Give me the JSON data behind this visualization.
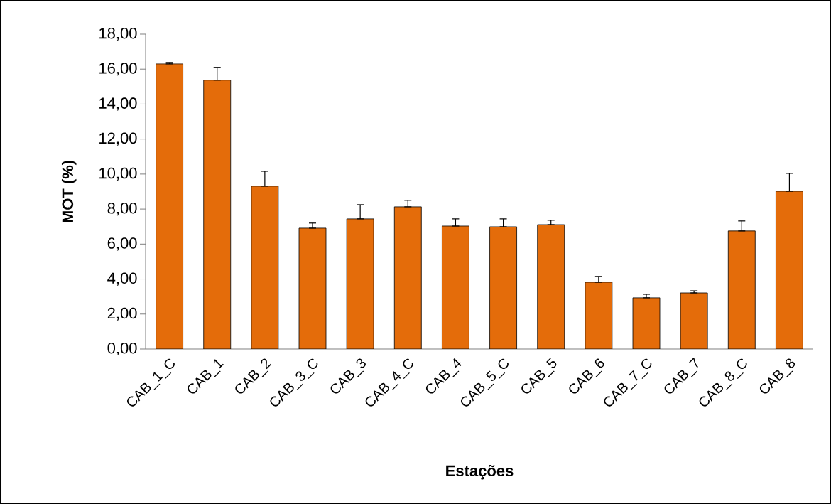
{
  "chart_data": {
    "type": "bar",
    "xlabel": "Estações",
    "ylabel": "MOT (%)",
    "categories": [
      "CAB_1_C",
      "CAB_1",
      "CAB_2",
      "CAB_3_C",
      "CAB_3",
      "CAB_4_C",
      "CAB_4",
      "CAB_5_C",
      "CAB_5",
      "CAB_6",
      "CAB_7_C",
      "CAB_7",
      "CAB_8_C",
      "CAB_8"
    ],
    "values": [
      16.3,
      15.37,
      9.31,
      6.91,
      7.44,
      8.13,
      7.03,
      6.99,
      7.11,
      3.82,
      2.93,
      3.21,
      6.75,
      9.02
    ],
    "errors": [
      [
        16.3,
        16.38
      ],
      [
        15.37,
        16.1
      ],
      [
        9.31,
        10.16
      ],
      [
        6.91,
        7.2
      ],
      [
        7.44,
        8.25
      ],
      [
        8.13,
        8.5
      ],
      [
        7.03,
        7.44
      ],
      [
        6.99,
        7.44
      ],
      [
        7.11,
        7.36
      ],
      [
        3.82,
        4.15
      ],
      [
        2.93,
        3.13
      ],
      [
        3.21,
        3.33
      ],
      [
        6.75,
        7.32
      ],
      [
        9.02,
        10.04
      ]
    ],
    "color": "#e46c0a",
    "ylim": [
      0,
      18
    ],
    "yticks": [
      {
        "value": 0,
        "label": "0,00"
      },
      {
        "value": 2,
        "label": "2,00"
      },
      {
        "value": 4,
        "label": "4,00"
      },
      {
        "value": 6,
        "label": "6,00"
      },
      {
        "value": 8,
        "label": "8,00"
      },
      {
        "value": 10,
        "label": "10,00"
      },
      {
        "value": 12,
        "label": "12,00"
      },
      {
        "value": 14,
        "label": "14,00"
      },
      {
        "value": 16,
        "label": "16,00"
      },
      {
        "value": 18,
        "label": "18,00"
      }
    ],
    "grid": false
  }
}
